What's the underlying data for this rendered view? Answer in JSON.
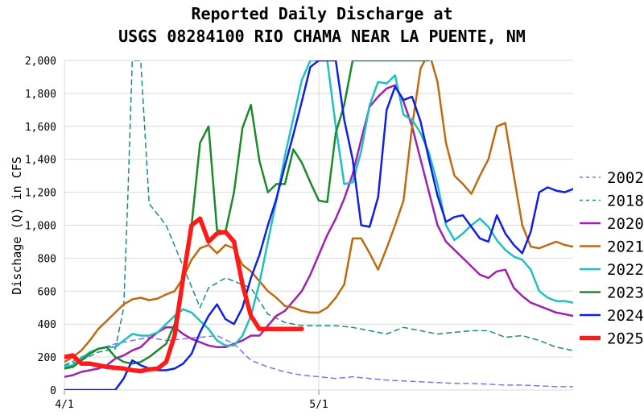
{
  "chart_data": {
    "type": "line",
    "title": "Reported Daily Discharge at",
    "subtitle": "USGS 08284100 RIO CHAMA NEAR LA PUENTE, NM",
    "xlabel": "",
    "ylabel": "Dischage (Q) in CFS",
    "ylim": [
      0,
      2000
    ],
    "yticks": [
      "0",
      "200",
      "400",
      "600",
      "800",
      "1,000",
      "1,200",
      "1,400",
      "1,600",
      "1,800",
      "2,000"
    ],
    "xlim": [
      0,
      60
    ],
    "xticks": [
      {
        "x": 0,
        "label": "4/1"
      },
      {
        "x": 30,
        "label": "5/1"
      }
    ],
    "grid": true,
    "legend_position": "right",
    "series": [
      {
        "name": "2002",
        "color": "#8c6cf0",
        "dash": "6,5",
        "width": 1.5,
        "x": [
          0,
          2,
          4,
          6,
          8,
          10,
          12,
          14,
          16,
          18,
          20,
          22,
          24,
          26,
          28,
          30,
          32,
          34,
          36,
          38,
          40,
          42,
          44,
          46,
          48,
          50,
          52,
          54,
          56,
          58,
          60
        ],
        "y": [
          150,
          200,
          250,
          280,
          300,
          320,
          300,
          310,
          320,
          330,
          280,
          180,
          140,
          110,
          90,
          80,
          70,
          80,
          70,
          60,
          55,
          50,
          45,
          40,
          40,
          35,
          30,
          30,
          25,
          20,
          20
        ]
      },
      {
        "name": "2018",
        "color": "#1a8a8a",
        "dash": "6,5",
        "width": 1.5,
        "x": [
          0,
          2,
          4,
          6,
          7,
          7.5,
          8,
          9,
          10,
          12,
          14,
          16,
          17,
          18,
          19,
          20,
          22,
          24,
          26,
          28,
          30,
          32,
          34,
          36,
          38,
          40,
          42,
          44,
          46,
          48,
          50,
          52,
          54,
          56,
          58,
          60
        ],
        "y": [
          150,
          180,
          230,
          250,
          500,
          1200,
          2000,
          2000,
          1130,
          1000,
          750,
          500,
          620,
          650,
          680,
          660,
          620,
          460,
          410,
          390,
          390,
          390,
          380,
          360,
          340,
          380,
          360,
          340,
          350,
          360,
          360,
          320,
          330,
          300,
          260,
          240
        ]
      },
      {
        "name": "2020",
        "color": "#a020b0",
        "dash": "",
        "width": 2.5,
        "x": [
          0,
          1,
          2,
          3,
          4,
          5,
          6,
          7,
          8,
          9,
          10,
          11,
          12,
          13,
          14,
          15,
          16,
          17,
          18,
          19,
          20,
          21,
          22,
          23,
          24,
          25,
          26,
          27,
          28,
          29,
          30,
          31,
          32,
          33,
          34,
          35,
          36,
          37,
          38,
          39,
          40,
          41,
          42,
          43,
          44,
          45,
          46,
          47,
          48,
          49,
          50,
          51,
          52,
          53,
          54,
          55,
          56,
          57,
          58,
          59,
          60
        ],
        "y": [
          80,
          90,
          110,
          120,
          130,
          150,
          190,
          210,
          240,
          260,
          310,
          350,
          380,
          380,
          340,
          310,
          290,
          270,
          260,
          260,
          280,
          300,
          330,
          330,
          390,
          450,
          480,
          540,
          600,
          700,
          820,
          940,
          1040,
          1160,
          1310,
          1520,
          1720,
          1780,
          1830,
          1850,
          1750,
          1600,
          1400,
          1200,
          1000,
          900,
          850,
          800,
          750,
          700,
          680,
          720,
          730,
          620,
          570,
          530,
          510,
          490,
          470,
          460,
          450
        ]
      },
      {
        "name": "2021",
        "color": "#c06a10",
        "dash": "",
        "width": 2.5,
        "x": [
          0,
          1,
          2,
          3,
          4,
          5,
          6,
          7,
          8,
          9,
          10,
          11,
          12,
          13,
          14,
          15,
          16,
          17,
          18,
          19,
          20,
          21,
          22,
          23,
          24,
          25,
          26,
          27,
          28,
          29,
          30,
          31,
          32,
          33,
          34,
          35,
          36,
          37,
          38,
          39,
          40,
          41,
          42,
          43,
          44,
          45,
          46,
          47,
          48,
          49,
          50,
          51,
          52,
          53,
          54,
          55,
          56,
          57,
          58,
          59,
          60
        ],
        "y": [
          170,
          200,
          240,
          300,
          370,
          420,
          470,
          520,
          550,
          560,
          545,
          555,
          580,
          600,
          680,
          790,
          860,
          880,
          830,
          880,
          860,
          760,
          720,
          660,
          600,
          560,
          510,
          500,
          480,
          470,
          470,
          500,
          560,
          640,
          920,
          920,
          830,
          730,
          860,
          1000,
          1150,
          1600,
          1950,
          2050,
          1870,
          1500,
          1300,
          1250,
          1190,
          1300,
          1400,
          1600,
          1620,
          1300,
          1000,
          870,
          860,
          880,
          900,
          880,
          870
        ]
      },
      {
        "name": "2022",
        "color": "#20c0c0",
        "dash": "",
        "width": 2.5,
        "x": [
          0,
          1,
          2,
          3,
          4,
          5,
          6,
          7,
          8,
          9,
          10,
          11,
          12,
          13,
          14,
          15,
          16,
          17,
          18,
          19,
          20,
          21,
          22,
          23,
          24,
          25,
          26,
          27,
          28,
          29,
          30,
          31,
          32,
          33,
          34,
          35,
          36,
          37,
          38,
          39,
          40,
          41,
          42,
          43,
          44,
          45,
          46,
          47,
          48,
          49,
          50,
          51,
          52,
          53,
          54,
          55,
          56,
          57,
          58,
          59,
          60
        ],
        "y": [
          140,
          150,
          190,
          230,
          250,
          260,
          260,
          300,
          340,
          330,
          330,
          350,
          400,
          450,
          490,
          470,
          420,
          370,
          300,
          270,
          270,
          330,
          450,
          650,
          900,
          1150,
          1420,
          1650,
          1880,
          2000,
          2000,
          2000,
          1600,
          1250,
          1260,
          1450,
          1730,
          1870,
          1860,
          1910,
          1670,
          1640,
          1560,
          1440,
          1250,
          1000,
          910,
          950,
          1000,
          1040,
          990,
          910,
          850,
          810,
          790,
          730,
          600,
          560,
          540,
          540,
          530
        ]
      },
      {
        "name": "2023",
        "color": "#1a8a2a",
        "dash": "",
        "width": 2.5,
        "x": [
          0,
          1,
          2,
          3,
          4,
          5,
          6,
          7,
          8,
          9,
          10,
          11,
          12,
          13,
          14,
          15,
          16,
          17,
          18,
          19,
          20,
          21,
          22,
          23,
          24,
          25,
          26,
          27,
          28,
          29,
          30,
          31,
          32,
          33,
          34,
          35,
          36,
          37,
          38,
          39,
          40,
          41,
          42,
          43
        ],
        "y": [
          130,
          140,
          180,
          220,
          250,
          260,
          200,
          170,
          160,
          170,
          200,
          240,
          280,
          400,
          700,
          1000,
          1500,
          1600,
          970,
          960,
          1200,
          1590,
          1730,
          1390,
          1200,
          1250,
          1250,
          1460,
          1380,
          1260,
          1150,
          1140,
          1560,
          1730,
          2000,
          2000,
          2000,
          2000,
          2000,
          2000,
          2000,
          2000,
          2000,
          2000
        ]
      },
      {
        "name": "2024",
        "color": "#1020e0",
        "dash": "",
        "width": 2.5,
        "x": [
          0,
          1,
          2,
          3,
          4,
          5,
          6,
          7,
          8,
          9,
          10,
          11,
          12,
          13,
          14,
          15,
          16,
          17,
          18,
          19,
          20,
          21,
          22,
          23,
          24,
          25,
          26,
          27,
          28,
          29,
          30,
          31,
          32,
          33,
          34,
          35,
          36,
          37,
          38,
          39,
          40,
          41,
          42,
          43,
          44,
          45,
          46,
          47,
          48,
          49,
          50,
          51,
          52,
          53,
          54,
          55,
          56,
          57,
          58,
          59,
          60
        ],
        "y": [
          0,
          0,
          0,
          0,
          0,
          0,
          0,
          70,
          180,
          150,
          130,
          120,
          120,
          130,
          160,
          220,
          350,
          450,
          520,
          430,
          400,
          500,
          680,
          820,
          1000,
          1160,
          1360,
          1550,
          1750,
          1960,
          2000,
          2000,
          2000,
          1640,
          1400,
          1000,
          990,
          1170,
          1700,
          1840,
          1760,
          1780,
          1630,
          1400,
          1180,
          1020,
          1050,
          1060,
          990,
          920,
          900,
          1060,
          950,
          880,
          830,
          960,
          1200,
          1230,
          1210,
          1200,
          1220
        ]
      },
      {
        "name": "2025",
        "color": "#ff1a1a",
        "dash": "",
        "width": 5.5,
        "x": [
          0,
          1,
          2,
          3,
          4,
          5,
          6,
          7,
          8,
          9,
          10,
          11,
          12,
          13,
          14,
          15,
          16,
          17,
          18,
          19,
          20,
          21,
          22,
          23,
          24,
          25,
          26,
          27,
          28
        ],
        "y": [
          200,
          210,
          160,
          160,
          150,
          140,
          135,
          130,
          120,
          115,
          125,
          130,
          170,
          330,
          680,
          1000,
          1040,
          900,
          950,
          960,
          900,
          640,
          450,
          370,
          370,
          370,
          370,
          370,
          370
        ]
      }
    ],
    "annotations": []
  }
}
